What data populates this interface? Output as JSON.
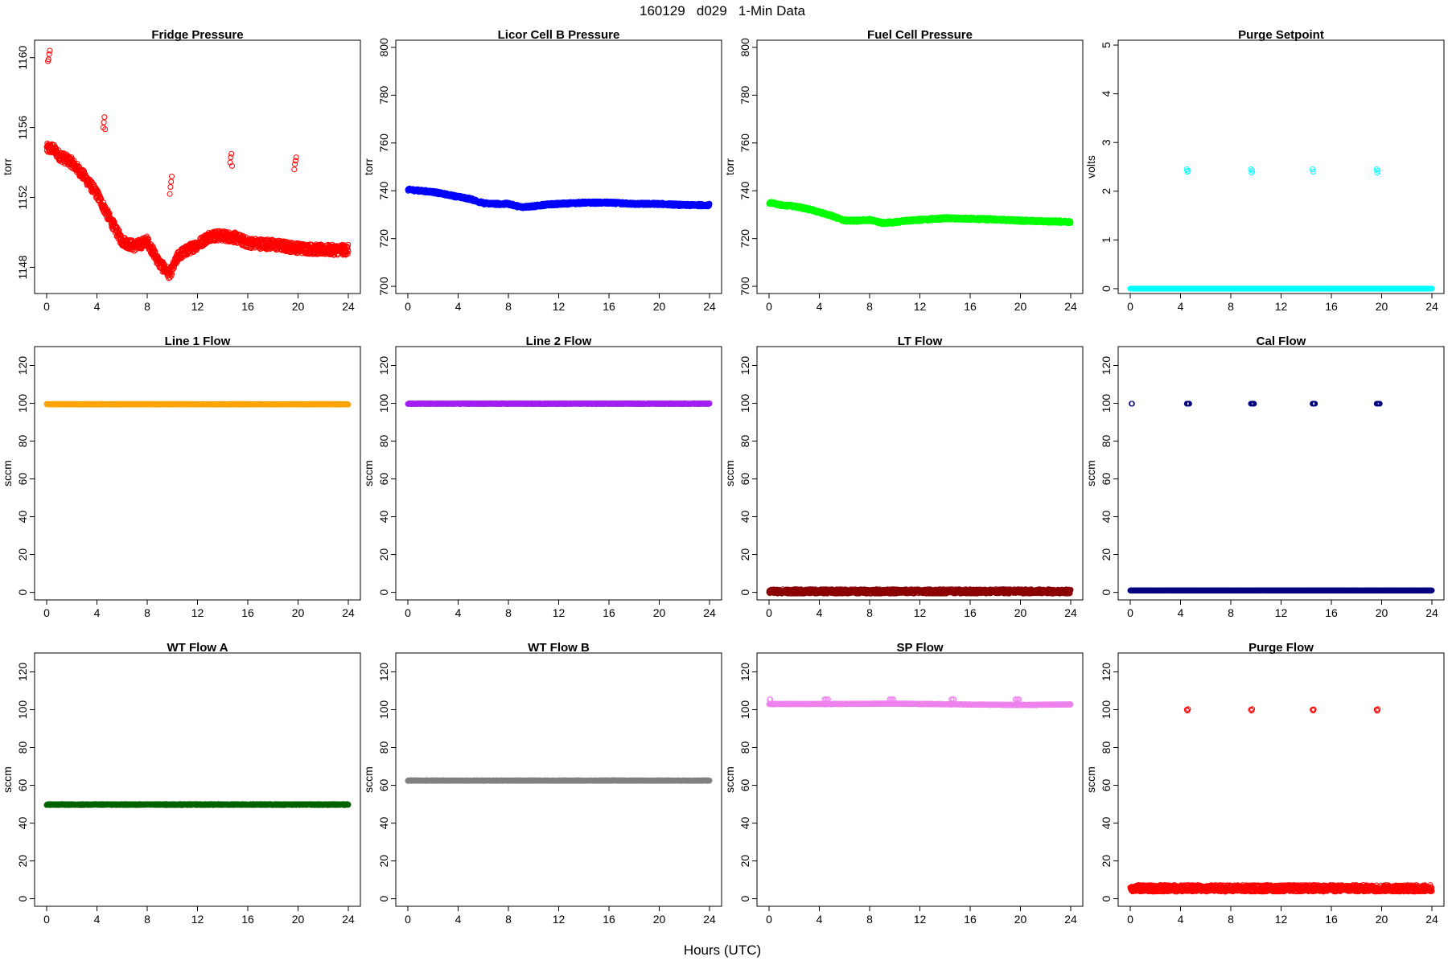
{
  "page": {
    "title": "160129   d029   1-Min Data",
    "xlabel": "Hours (UTC)"
  },
  "chart_data": [
    {
      "type": "scatter",
      "title": "Fridge Pressure",
      "ylabel": "torr",
      "color": "#ff0000",
      "xlim": [
        0,
        24
      ],
      "xticks": [
        0,
        4,
        8,
        12,
        16,
        20,
        24
      ],
      "ylim": [
        1146.5,
        1161.0
      ],
      "yticks": [
        1148,
        1152,
        1156,
        1160
      ],
      "series": [
        {
          "profile": [
            [
              0,
              1154.8
            ],
            [
              0.5,
              1154.8
            ],
            [
              1,
              1154.4
            ],
            [
              2,
              1154.0
            ],
            [
              3,
              1153.2
            ],
            [
              4,
              1152.2
            ],
            [
              5,
              1150.8
            ],
            [
              6,
              1149.5
            ],
            [
              7,
              1149.2
            ],
            [
              8,
              1149.5
            ],
            [
              9,
              1148.2
            ],
            [
              9.8,
              1147.6
            ],
            [
              10.5,
              1148.7
            ],
            [
              12,
              1149.3
            ],
            [
              13,
              1149.8
            ],
            [
              14,
              1149.8
            ],
            [
              15,
              1149.7
            ],
            [
              16,
              1149.4
            ],
            [
              18,
              1149.3
            ],
            [
              20,
              1149.1
            ],
            [
              22,
              1149.0
            ],
            [
              24,
              1149.0
            ]
          ],
          "spread": 0.3,
          "outliers": [
            [
              0.1,
              1159.8
            ],
            [
              0.15,
              1159.9
            ],
            [
              0.2,
              1160.2
            ],
            [
              0.25,
              1160.4
            ],
            [
              4.5,
              1156.0
            ],
            [
              4.55,
              1156.3
            ],
            [
              4.6,
              1156.6
            ],
            [
              4.65,
              1155.9
            ],
            [
              9.8,
              1152.2
            ],
            [
              9.85,
              1152.6
            ],
            [
              9.9,
              1152.9
            ],
            [
              9.95,
              1153.2
            ],
            [
              14.6,
              1154.0
            ],
            [
              14.65,
              1154.3
            ],
            [
              14.7,
              1154.5
            ],
            [
              14.75,
              1153.8
            ],
            [
              19.7,
              1153.6
            ],
            [
              19.75,
              1153.9
            ],
            [
              19.8,
              1154.1
            ],
            [
              19.85,
              1154.3
            ]
          ]
        }
      ]
    },
    {
      "type": "scatter",
      "title": "Licor Cell B Pressure",
      "ylabel": "torr",
      "color": "#0000ff",
      "xlim": [
        0,
        24
      ],
      "xticks": [
        0,
        4,
        8,
        12,
        16,
        20,
        24
      ],
      "ylim": [
        697,
        803
      ],
      "yticks": [
        700,
        720,
        740,
        760,
        780,
        800
      ],
      "series": [
        {
          "profile": [
            [
              0,
              740.5
            ],
            [
              1,
              740
            ],
            [
              2,
              739.5
            ],
            [
              3,
              738.5
            ],
            [
              4,
              737.5
            ],
            [
              5,
              736.5
            ],
            [
              6,
              734.8
            ],
            [
              7,
              734.5
            ],
            [
              8,
              734.5
            ],
            [
              9,
              733.2
            ],
            [
              10,
              733.5
            ],
            [
              11,
              734.2
            ],
            [
              12,
              734.5
            ],
            [
              14,
              735
            ],
            [
              16,
              735
            ],
            [
              18,
              734.5
            ],
            [
              20,
              734.5
            ],
            [
              22,
              734
            ],
            [
              24,
              734
            ]
          ],
          "spread": 0.6,
          "outliers": []
        }
      ]
    },
    {
      "type": "scatter",
      "title": "Fuel Cell Pressure",
      "ylabel": "torr",
      "color": "#00ff00",
      "xlim": [
        0,
        24
      ],
      "xticks": [
        0,
        4,
        8,
        12,
        16,
        20,
        24
      ],
      "ylim": [
        697,
        803
      ],
      "yticks": [
        700,
        720,
        740,
        760,
        780,
        800
      ],
      "series": [
        {
          "profile": [
            [
              0,
              735
            ],
            [
              1,
              734
            ],
            [
              2,
              733.5
            ],
            [
              3,
              732.5
            ],
            [
              4,
              731
            ],
            [
              5,
              729.5
            ],
            [
              6,
              727.5
            ],
            [
              7,
              727.5
            ],
            [
              8,
              727.8
            ],
            [
              9,
              726.5
            ],
            [
              10,
              726.8
            ],
            [
              11,
              727.5
            ],
            [
              12,
              727.8
            ],
            [
              14,
              728.5
            ],
            [
              16,
              728.3
            ],
            [
              18,
              728
            ],
            [
              20,
              727.5
            ],
            [
              22,
              727.2
            ],
            [
              24,
              727
            ]
          ],
          "spread": 0.6,
          "outliers": []
        }
      ]
    },
    {
      "type": "scatter",
      "title": "Purge Setpoint",
      "ylabel": "volts",
      "color": "#00ffff",
      "xlim": [
        0,
        24
      ],
      "xticks": [
        0,
        4,
        8,
        12,
        16,
        20,
        24
      ],
      "ylim": [
        -0.1,
        5.1
      ],
      "yticks": [
        0,
        1,
        2,
        3,
        4,
        5
      ],
      "series": [
        {
          "profile": [
            [
              0,
              0
            ],
            [
              24,
              0
            ]
          ],
          "spread": 0.0,
          "outliers": [
            [
              4.5,
              2.45
            ],
            [
              4.55,
              2.4
            ],
            [
              4.6,
              2.42
            ],
            [
              9.6,
              2.45
            ],
            [
              9.65,
              2.38
            ],
            [
              9.7,
              2.42
            ],
            [
              14.5,
              2.45
            ],
            [
              14.55,
              2.4
            ],
            [
              19.6,
              2.45
            ],
            [
              19.65,
              2.38
            ],
            [
              19.7,
              2.42
            ]
          ]
        }
      ]
    },
    {
      "type": "scatter",
      "title": "Line 1 Flow",
      "ylabel": "sccm",
      "color": "#ffa500",
      "xlim": [
        0,
        24
      ],
      "xticks": [
        0,
        4,
        8,
        12,
        16,
        20,
        24
      ],
      "ylim": [
        -4,
        130
      ],
      "yticks": [
        0,
        20,
        40,
        60,
        80,
        100,
        120
      ],
      "series": [
        {
          "profile": [
            [
              0,
              99.5
            ],
            [
              24,
              99.5
            ]
          ],
          "spread": 0.2,
          "outliers": []
        }
      ]
    },
    {
      "type": "scatter",
      "title": "Line 2 Flow",
      "ylabel": "sccm",
      "color": "#a020f0",
      "xlim": [
        0,
        24
      ],
      "xticks": [
        0,
        4,
        8,
        12,
        16,
        20,
        24
      ],
      "ylim": [
        -4,
        130
      ],
      "yticks": [
        0,
        20,
        40,
        60,
        80,
        100,
        120
      ],
      "series": [
        {
          "profile": [
            [
              0,
              99.8
            ],
            [
              24,
              99.8
            ]
          ],
          "spread": 0.2,
          "outliers": []
        }
      ]
    },
    {
      "type": "scatter",
      "title": "LT Flow",
      "ylabel": "sccm",
      "color": "#8b0000",
      "xlim": [
        0,
        24
      ],
      "xticks": [
        0,
        4,
        8,
        12,
        16,
        20,
        24
      ],
      "ylim": [
        -4,
        130
      ],
      "yticks": [
        0,
        20,
        40,
        60,
        80,
        100,
        120
      ],
      "series": [
        {
          "profile": [
            [
              0,
              0.5
            ],
            [
              24,
              0.5
            ]
          ],
          "spread": 1.2,
          "outliers": []
        }
      ]
    },
    {
      "type": "scatter",
      "title": "Cal Flow",
      "ylabel": "sccm",
      "color": "#000080",
      "xlim": [
        0,
        24
      ],
      "xticks": [
        0,
        4,
        8,
        12,
        16,
        20,
        24
      ],
      "ylim": [
        -4,
        130
      ],
      "yticks": [
        0,
        20,
        40,
        60,
        80,
        100,
        120
      ],
      "series": [
        {
          "profile": [
            [
              0,
              1
            ],
            [
              24,
              1
            ]
          ],
          "spread": 0.1,
          "outliers": [
            [
              0.1,
              99.8
            ],
            [
              0.15,
              99.8
            ],
            [
              4.5,
              99.8
            ],
            [
              4.55,
              99.8
            ],
            [
              4.6,
              99.8
            ],
            [
              4.65,
              99.8
            ],
            [
              4.7,
              99.8
            ],
            [
              9.6,
              99.8
            ],
            [
              9.65,
              99.8
            ],
            [
              9.7,
              99.8
            ],
            [
              9.75,
              99.8
            ],
            [
              9.8,
              99.8
            ],
            [
              9.85,
              99.8
            ],
            [
              14.5,
              99.8
            ],
            [
              14.55,
              99.8
            ],
            [
              14.6,
              99.8
            ],
            [
              14.65,
              99.8
            ],
            [
              14.7,
              99.8
            ],
            [
              19.6,
              99.8
            ],
            [
              19.65,
              99.8
            ],
            [
              19.7,
              99.8
            ],
            [
              19.75,
              99.8
            ],
            [
              19.8,
              99.8
            ],
            [
              19.85,
              99.8
            ]
          ]
        }
      ]
    },
    {
      "type": "scatter",
      "title": "WT Flow A",
      "ylabel": "sccm",
      "color": "#006400",
      "xlim": [
        0,
        24
      ],
      "xticks": [
        0,
        4,
        8,
        12,
        16,
        20,
        24
      ],
      "ylim": [
        -4,
        130
      ],
      "yticks": [
        0,
        20,
        40,
        60,
        80,
        100,
        120
      ],
      "series": [
        {
          "profile": [
            [
              0,
              49.8
            ],
            [
              24,
              49.8
            ]
          ],
          "spread": 0.3,
          "outliers": []
        }
      ]
    },
    {
      "type": "scatter",
      "title": "WT Flow B",
      "ylabel": "sccm",
      "color": "#808080",
      "xlim": [
        0,
        24
      ],
      "xticks": [
        0,
        4,
        8,
        12,
        16,
        20,
        24
      ],
      "ylim": [
        -4,
        130
      ],
      "yticks": [
        0,
        20,
        40,
        60,
        80,
        100,
        120
      ],
      "series": [
        {
          "profile": [
            [
              0,
              62.5
            ],
            [
              24,
              62.5
            ]
          ],
          "spread": 0.2,
          "outliers": []
        }
      ]
    },
    {
      "type": "scatter",
      "title": "SP Flow",
      "ylabel": "sccm",
      "color": "#ee82ee",
      "xlim": [
        0,
        24
      ],
      "xticks": [
        0,
        4,
        8,
        12,
        16,
        20,
        24
      ],
      "ylim": [
        -4,
        130
      ],
      "yticks": [
        0,
        20,
        40,
        60,
        80,
        100,
        120
      ],
      "series": [
        {
          "profile": [
            [
              0,
              103
            ],
            [
              5,
              103
            ],
            [
              10,
              103.2
            ],
            [
              15,
              102.8
            ],
            [
              20,
              102.5
            ],
            [
              24,
              102.8
            ]
          ],
          "spread": 0.2,
          "outliers": [
            [
              0.05,
              105.5
            ],
            [
              0.1,
              105.5
            ],
            [
              4.4,
              105.5
            ],
            [
              4.5,
              105.5
            ],
            [
              4.6,
              105.5
            ],
            [
              4.7,
              105.5
            ],
            [
              9.6,
              105.5
            ],
            [
              9.7,
              105.5
            ],
            [
              9.8,
              105.5
            ],
            [
              9.9,
              105.5
            ],
            [
              14.5,
              105.5
            ],
            [
              14.6,
              105.5
            ],
            [
              14.7,
              105.5
            ],
            [
              19.6,
              105.5
            ],
            [
              19.7,
              105.5
            ],
            [
              19.8,
              105.5
            ],
            [
              19.9,
              105.5
            ]
          ]
        }
      ]
    },
    {
      "type": "scatter",
      "title": "Purge Flow",
      "ylabel": "sccm",
      "color": "#ff0000",
      "xlim": [
        0,
        24
      ],
      "xticks": [
        0,
        4,
        8,
        12,
        16,
        20,
        24
      ],
      "ylim": [
        -4,
        130
      ],
      "yticks": [
        0,
        20,
        40,
        60,
        80,
        100,
        120
      ],
      "series": [
        {
          "profile": [
            [
              0,
              5.5
            ],
            [
              24,
              5.5
            ]
          ],
          "spread": 1.8,
          "outliers": [
            [
              4.5,
              100
            ],
            [
              4.55,
              99.5
            ],
            [
              4.6,
              100.3
            ],
            [
              9.6,
              100
            ],
            [
              9.65,
              99.5
            ],
            [
              9.7,
              100.3
            ],
            [
              14.5,
              100
            ],
            [
              14.55,
              99.6
            ],
            [
              14.6,
              100.2
            ],
            [
              19.6,
              100
            ],
            [
              19.65,
              99.4
            ],
            [
              19.7,
              100.3
            ]
          ]
        }
      ]
    }
  ]
}
